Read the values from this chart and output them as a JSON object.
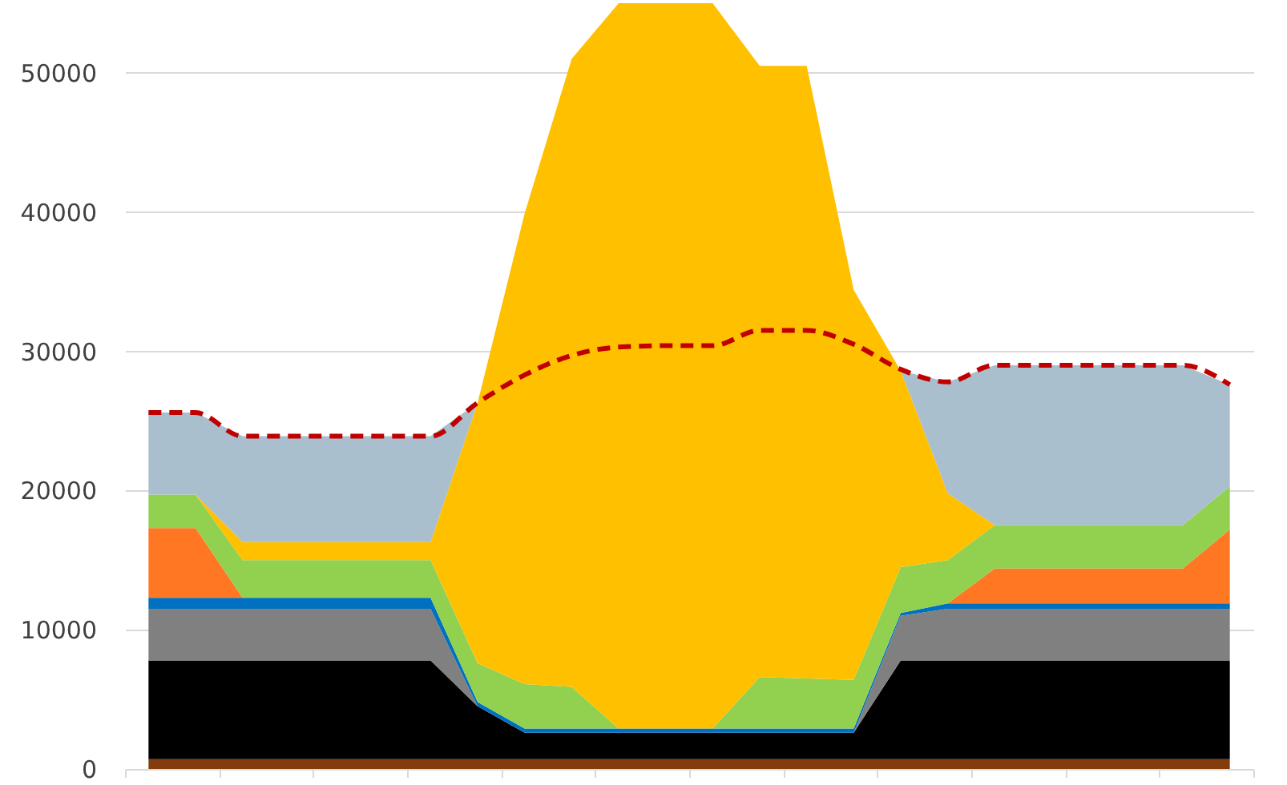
{
  "chart_data": {
    "type": "area",
    "stacked": true,
    "categories": [
      null,
      null,
      null,
      null,
      null,
      null,
      null,
      null,
      null,
      null,
      null,
      null,
      null,
      null,
      null,
      null,
      null,
      null,
      null,
      null,
      null,
      null,
      null,
      null
    ],
    "ylim": [
      0,
      55000
    ],
    "yticks": [
      0,
      10000,
      20000,
      30000,
      40000,
      50000
    ],
    "grid": "y",
    "tick_labels": "y",
    "series": [
      {
        "color": "#843c0c",
        "values": [
          700,
          700,
          700,
          700,
          700,
          700,
          700,
          700,
          700,
          700,
          700,
          700,
          700,
          700,
          700,
          700,
          700,
          700,
          700,
          700,
          700,
          700,
          700,
          700
        ]
      },
      {
        "color": "#000000",
        "values": [
          7100,
          7100,
          7100,
          7100,
          7100,
          7100,
          7100,
          3800,
          1900,
          1900,
          1900,
          1900,
          1900,
          1900,
          1900,
          1900,
          7100,
          7100,
          7100,
          7100,
          7100,
          7100,
          7100,
          7100
        ]
      },
      {
        "color": "#808080",
        "values": [
          3700,
          3700,
          3700,
          3700,
          3700,
          3700,
          3700,
          0,
          0,
          0,
          0,
          0,
          0,
          0,
          0,
          0,
          3200,
          3700,
          3700,
          3700,
          3700,
          3700,
          3700,
          3700
        ]
      },
      {
        "color": "#0070c0",
        "values": [
          800,
          800,
          800,
          800,
          800,
          800,
          800,
          300,
          300,
          300,
          300,
          300,
          300,
          300,
          300,
          300,
          200,
          400,
          400,
          400,
          400,
          400,
          400,
          400
        ]
      },
      {
        "color": "#ff7722",
        "values": [
          5000,
          5000,
          0,
          0,
          0,
          0,
          0,
          0,
          0,
          0,
          0,
          0,
          0,
          0,
          0,
          0,
          0,
          0,
          2500,
          2500,
          2500,
          2500,
          2500,
          5300
        ]
      },
      {
        "color": "#92d050",
        "values": [
          2400,
          2400,
          2700,
          2700,
          2700,
          2700,
          2700,
          2800,
          3200,
          3000,
          0,
          0,
          0,
          3700,
          3600,
          3500,
          3300,
          3100,
          3100,
          3100,
          3100,
          3100,
          3100,
          3100
        ]
      },
      {
        "color": "#ffc000",
        "values": [
          0,
          0,
          1300,
          1300,
          1300,
          1300,
          1300,
          18700,
          33800,
          45100,
          52100,
          52100,
          52100,
          43900,
          44000,
          28000,
          14100,
          4800,
          0,
          0,
          0,
          0,
          0,
          0
        ]
      },
      {
        "color": "#a9bfcd",
        "values": [
          5900,
          5900,
          7600,
          7600,
          7600,
          7600,
          7600,
          0,
          0,
          0,
          0,
          0,
          0,
          0,
          0,
          0,
          0,
          8000,
          11500,
          11500,
          11500,
          11500,
          11500,
          7300
        ]
      },
      {
        "type": "line",
        "line_style": "dashed",
        "color": "#c00000",
        "values": [
          25600,
          25600,
          23900,
          23900,
          23900,
          23900,
          23900,
          26300,
          28300,
          29700,
          30300,
          30400,
          30400,
          31500,
          31500,
          30500,
          28700,
          27800,
          29000,
          29000,
          29000,
          29000,
          29000,
          27600
        ]
      }
    ]
  }
}
